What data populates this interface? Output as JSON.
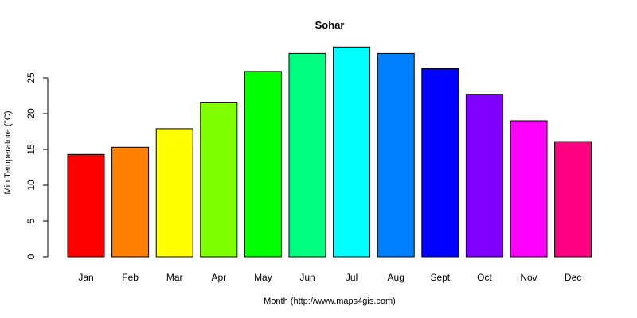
{
  "chart_data": {
    "type": "bar",
    "title": "Sohar",
    "xlabel": "Month (http://www.maps4gis.com)",
    "ylabel": "Min Temperature (°C)",
    "categories": [
      "Jan",
      "Feb",
      "Mar",
      "Apr",
      "May",
      "Jun",
      "Jul",
      "Aug",
      "Sept",
      "Oct",
      "Nov",
      "Dec"
    ],
    "values": [
      14.3,
      15.3,
      17.9,
      21.6,
      25.9,
      28.4,
      29.3,
      28.4,
      26.3,
      22.7,
      19.0,
      16.1
    ],
    "colors": [
      "#FF0000",
      "#FF8000",
      "#FFFF00",
      "#80FF00",
      "#00FF00",
      "#00FF80",
      "#00FFFF",
      "#0080FF",
      "#0000FF",
      "#8000FF",
      "#FF00FF",
      "#FF0080"
    ],
    "yticks": [
      "0",
      "5",
      "10",
      "15",
      "20",
      "25"
    ],
    "ylim": [
      0,
      30
    ],
    "grid": false,
    "legend": "none"
  }
}
